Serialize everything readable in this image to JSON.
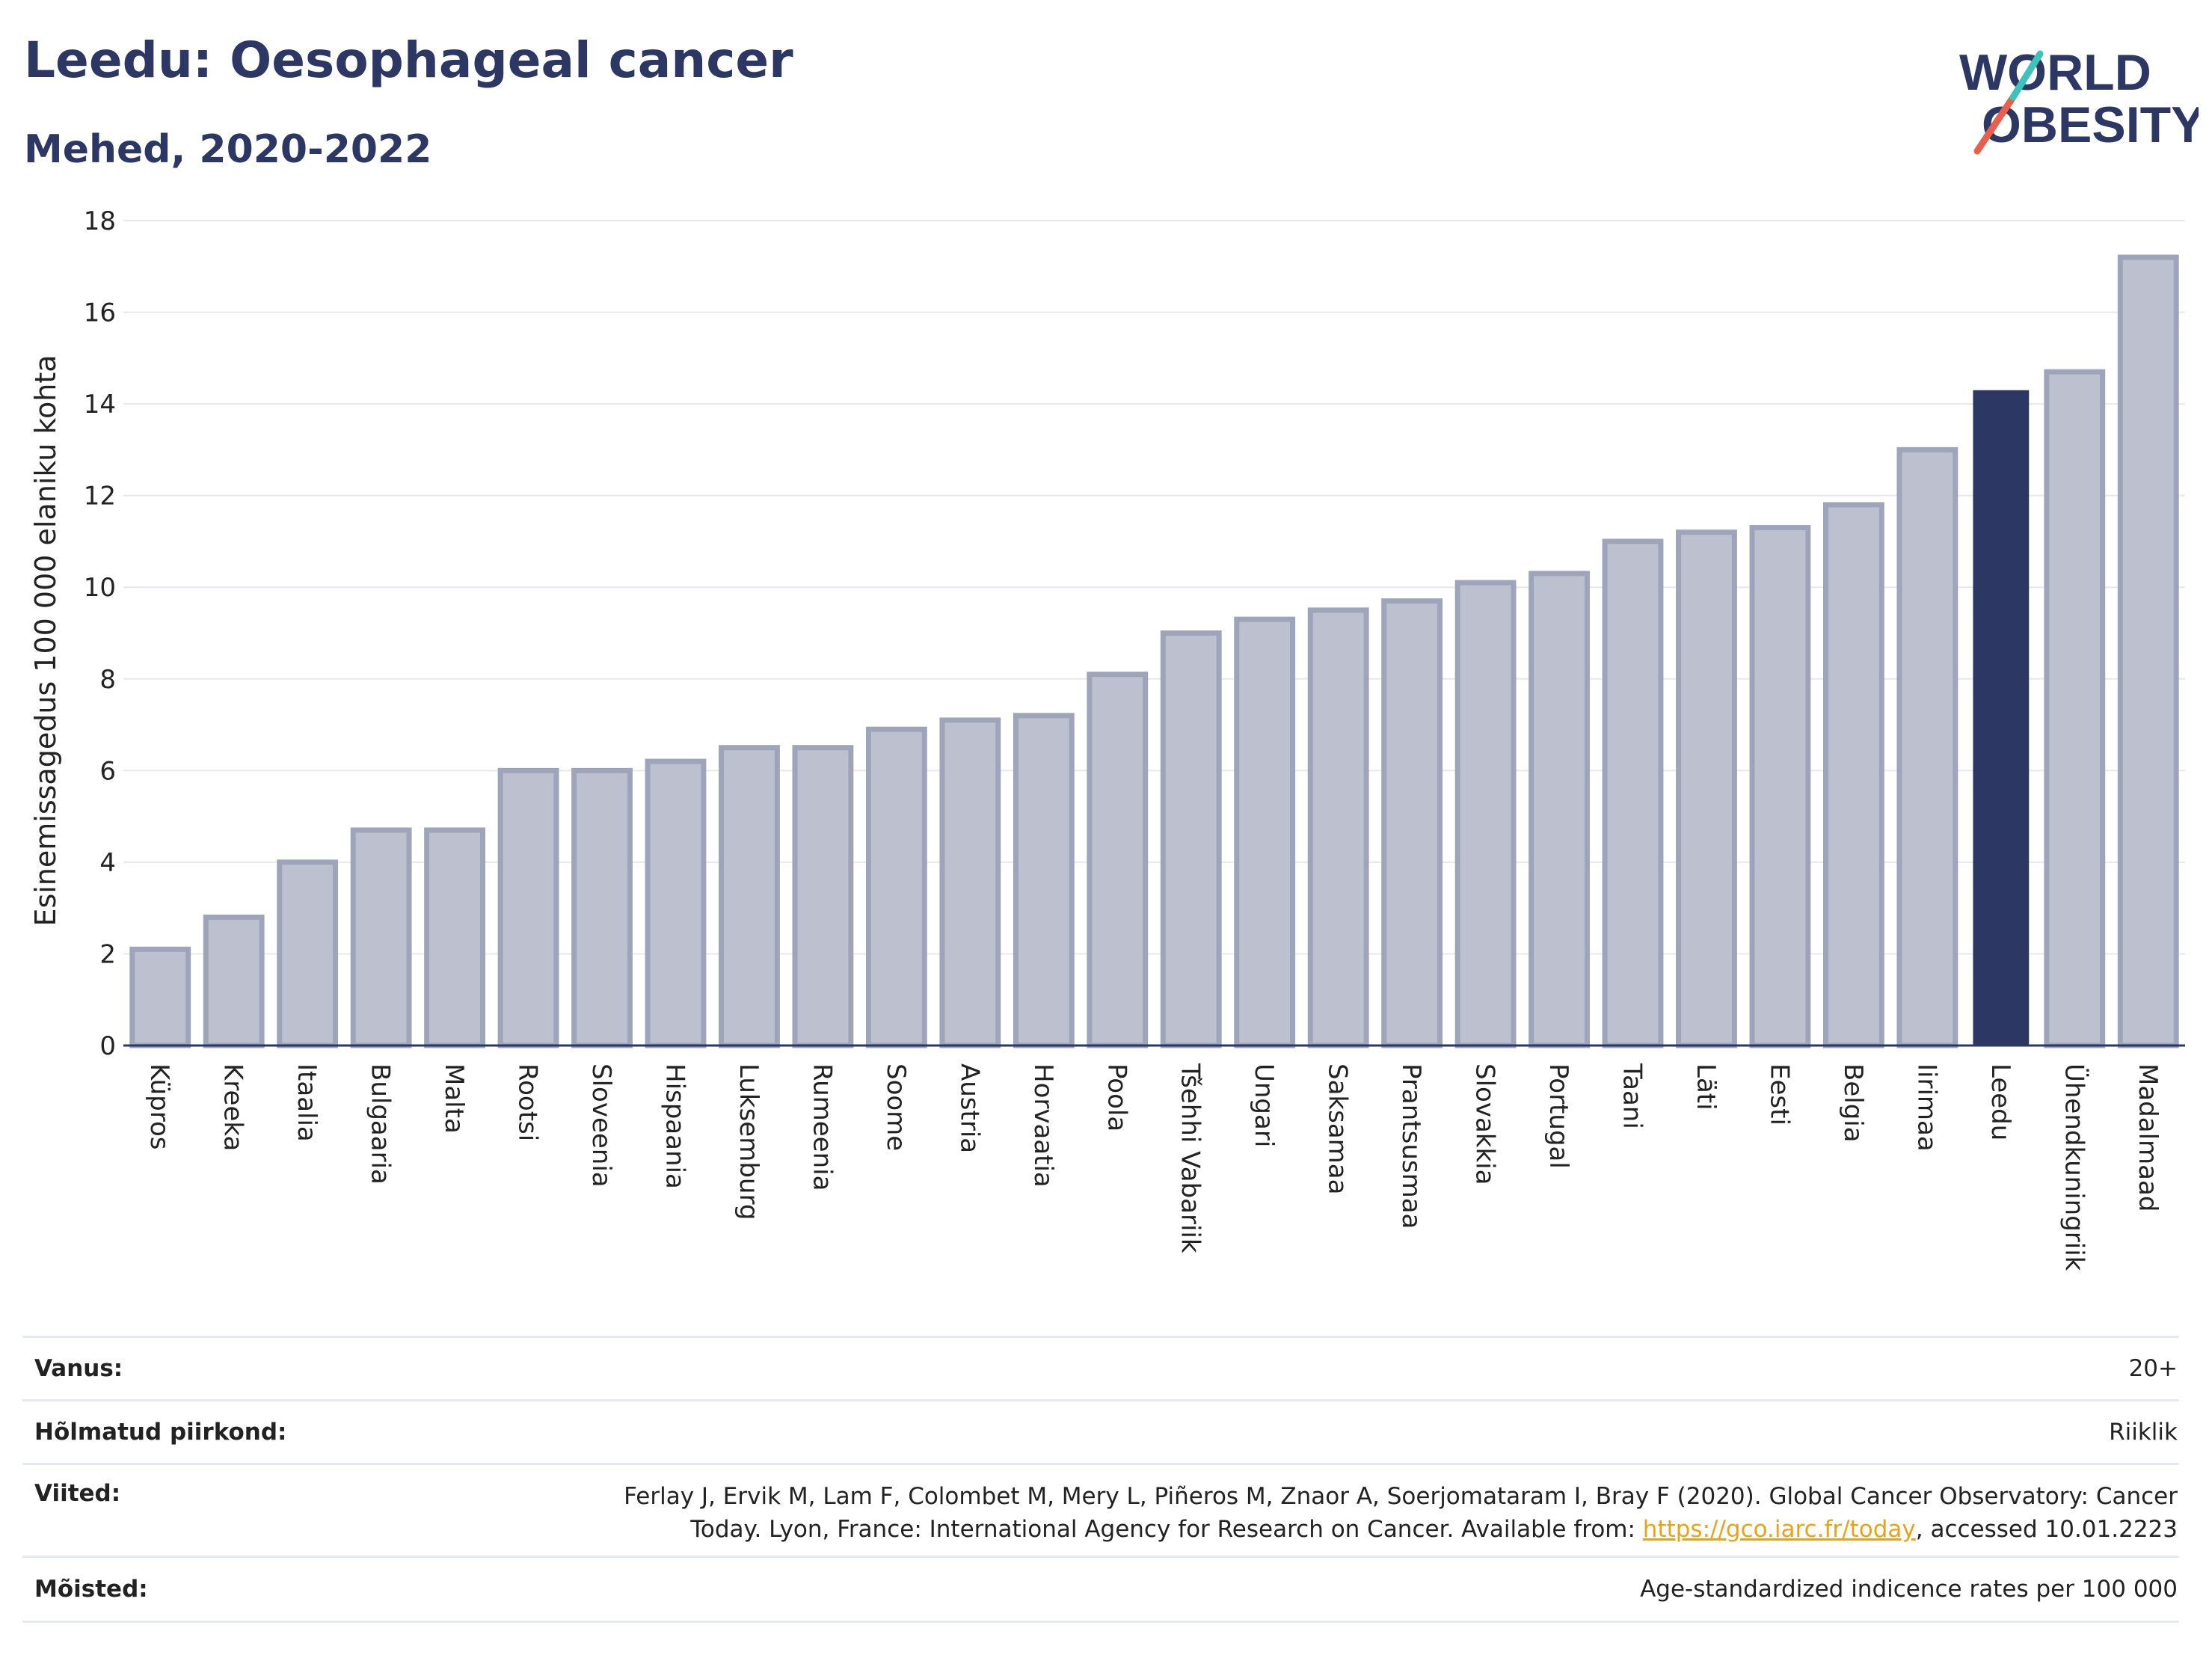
{
  "title": "Leedu: Oesophageal cancer",
  "subtitle": "Mehed, 2020-2022",
  "logo": {
    "line1": "WORLD",
    "line2": "OBESITY"
  },
  "colors": {
    "highlight": "#2d3764",
    "bar": "#bdc1cf",
    "bar_stroke": "#9ea4ba",
    "title": "#2d3764",
    "accent_red": "#e8604c",
    "accent_teal": "#3cc4bb",
    "link": "#e8a317"
  },
  "chart_data": {
    "type": "bar",
    "ylabel": "Esinemissagedus 100 000 elaniku kohta",
    "xlabel": "",
    "ylim": [
      0,
      18
    ],
    "yticks": [
      0,
      2,
      4,
      6,
      8,
      10,
      12,
      14,
      16,
      18
    ],
    "grid": true,
    "highlight": "Leedu",
    "categories": [
      "Küpros",
      "Kreeka",
      "Itaalia",
      "Bulgaaria",
      "Malta",
      "Rootsi",
      "Sloveenia",
      "Hispaania",
      "Luksemburg",
      "Rumeenia",
      "Soome",
      "Austria",
      "Horvaatia",
      "Poola",
      "Tšehhi Vabariik",
      "Ungari",
      "Saksamaa",
      "Prantsusmaa",
      "Slovakkia",
      "Portugal",
      "Taani",
      "Läti",
      "Eesti",
      "Belgia",
      "Iirimaa",
      "Leedu",
      "Ühendkuningriik",
      "Madalmaad"
    ],
    "values": [
      2.1,
      2.8,
      4.0,
      4.7,
      4.7,
      6.0,
      6.0,
      6.2,
      6.5,
      6.5,
      6.9,
      7.1,
      7.2,
      8.1,
      9.0,
      9.3,
      9.5,
      9.7,
      10.1,
      10.3,
      11.0,
      11.2,
      11.3,
      11.8,
      13.0,
      14.3,
      14.7,
      17.2
    ]
  },
  "info": {
    "age_label": "Vanus:",
    "age_value": "20+",
    "region_label": "Hõlmatud piirkond:",
    "region_value": "Riiklik",
    "refs_label": "Viited:",
    "refs_text_1": "Ferlay J, Ervik M, Lam F, Colombet M, Mery L, Piñeros M, Znaor A, Soerjomataram I, Bray F (2020). Global Cancer Observatory: Cancer Today. Lyon, France: International Agency for Research on Cancer. Available from: ",
    "refs_link": "https://gco.iarc.fr/today",
    "refs_text_2": ", accessed 10.01.2223",
    "defs_label": "Mõisted:",
    "defs_value": "Age-standardized indicence rates per 100 000"
  }
}
